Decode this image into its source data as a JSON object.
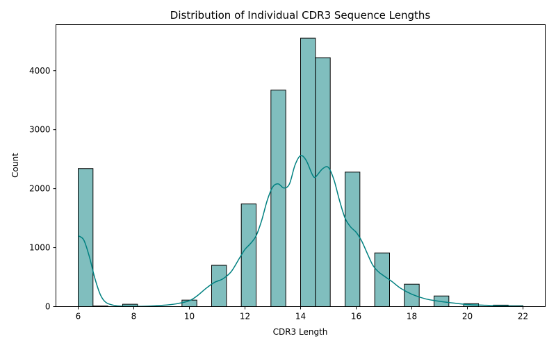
{
  "chart_data": {
    "type": "bar",
    "title": "Distribution of Individual CDR3 Sequence Lengths",
    "xlabel": "CDR3 Length",
    "ylabel": "Count",
    "xlim": [
      5.2,
      22.8
    ],
    "ylim": [
      0,
      4780
    ],
    "x_ticks": [
      6,
      8,
      10,
      12,
      14,
      16,
      18,
      20,
      22
    ],
    "y_ticks": [
      0,
      1000,
      2000,
      3000,
      4000
    ],
    "grid": false,
    "colors": {
      "bar_fill": "#80BEBE",
      "bar_edge": "#000000",
      "kde_line": "#008080"
    },
    "bins": [
      {
        "x0": 6.0,
        "x1": 6.533,
        "count": 2340
      },
      {
        "x0": 6.533,
        "x1": 7.067,
        "count": 10
      },
      {
        "x0": 7.067,
        "x1": 7.6,
        "count": 0
      },
      {
        "x0": 7.6,
        "x1": 8.133,
        "count": 40
      },
      {
        "x0": 8.133,
        "x1": 8.667,
        "count": 0
      },
      {
        "x0": 8.667,
        "x1": 9.2,
        "count": 0
      },
      {
        "x0": 9.2,
        "x1": 9.733,
        "count": 0
      },
      {
        "x0": 9.733,
        "x1": 10.267,
        "count": 110
      },
      {
        "x0": 10.267,
        "x1": 10.8,
        "count": 0
      },
      {
        "x0": 10.8,
        "x1": 11.333,
        "count": 700
      },
      {
        "x0": 11.333,
        "x1": 11.867,
        "count": 0
      },
      {
        "x0": 11.867,
        "x1": 12.4,
        "count": 1740
      },
      {
        "x0": 12.4,
        "x1": 12.933,
        "count": 0
      },
      {
        "x0": 12.933,
        "x1": 13.467,
        "count": 3670
      },
      {
        "x0": 13.467,
        "x1": 14.0,
        "count": 0
      },
      {
        "x0": 14.0,
        "x1": 14.533,
        "count": 4550
      },
      {
        "x0": 14.533,
        "x1": 15.067,
        "count": 4220
      },
      {
        "x0": 15.067,
        "x1": 15.6,
        "count": 0
      },
      {
        "x0": 15.6,
        "x1": 16.133,
        "count": 2280
      },
      {
        "x0": 16.133,
        "x1": 16.667,
        "count": 0
      },
      {
        "x0": 16.667,
        "x1": 17.2,
        "count": 910
      },
      {
        "x0": 17.2,
        "x1": 17.733,
        "count": 0
      },
      {
        "x0": 17.733,
        "x1": 18.267,
        "count": 380
      },
      {
        "x0": 18.267,
        "x1": 18.8,
        "count": 0
      },
      {
        "x0": 18.8,
        "x1": 19.333,
        "count": 180
      },
      {
        "x0": 19.333,
        "x1": 19.867,
        "count": 0
      },
      {
        "x0": 19.867,
        "x1": 20.4,
        "count": 50
      },
      {
        "x0": 20.4,
        "x1": 20.933,
        "count": 0
      },
      {
        "x0": 20.933,
        "x1": 21.467,
        "count": 25
      },
      {
        "x0": 21.467,
        "x1": 22.0,
        "count": 15
      }
    ],
    "kde": {
      "x": [
        6.0,
        6.2,
        6.4,
        6.6,
        6.8,
        7.0,
        7.3,
        7.6,
        8.0,
        8.5,
        9.0,
        9.5,
        10.0,
        10.3,
        10.6,
        10.9,
        11.2,
        11.5,
        11.8,
        12.0,
        12.2,
        12.4,
        12.6,
        12.8,
        13.0,
        13.2,
        13.4,
        13.6,
        13.8,
        14.0,
        14.2,
        14.4,
        14.5,
        14.6,
        14.8,
        15.0,
        15.2,
        15.4,
        15.6,
        15.8,
        16.0,
        16.2,
        16.4,
        16.6,
        16.8,
        17.0,
        17.3,
        17.6,
        18.0,
        18.5,
        19.0,
        19.5,
        20.0,
        20.5,
        21.0,
        21.5,
        22.0
      ],
      "y": [
        1200,
        1130,
        850,
        480,
        200,
        70,
        20,
        8,
        5,
        8,
        20,
        45,
        100,
        190,
        310,
        410,
        470,
        590,
        820,
        970,
        1070,
        1200,
        1460,
        1800,
        2030,
        2080,
        2010,
        2080,
        2400,
        2560,
        2480,
        2260,
        2190,
        2230,
        2340,
        2360,
        2150,
        1800,
        1500,
        1350,
        1260,
        1110,
        900,
        700,
        590,
        520,
        420,
        310,
        210,
        130,
        90,
        60,
        35,
        25,
        15,
        10,
        8
      ]
    }
  }
}
